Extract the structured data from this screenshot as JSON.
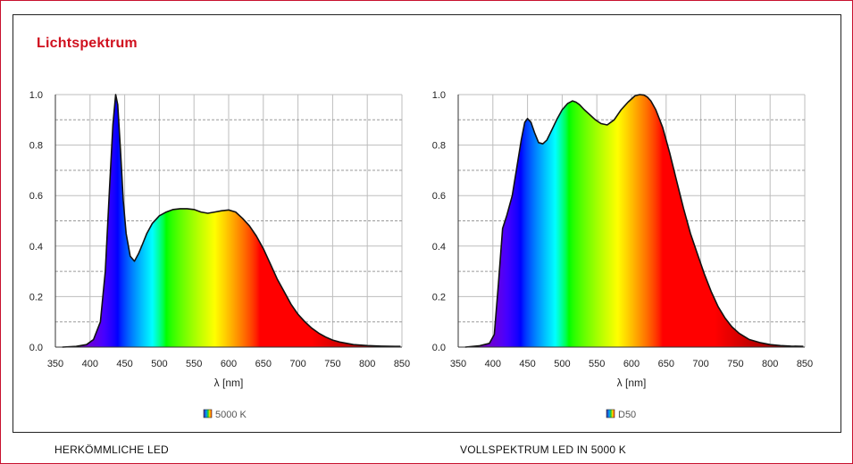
{
  "title": "Lichtspektrum",
  "captions": {
    "left": "HERKÖMMLICHE LED",
    "right": "VOLLSPEKTRUM LED IN 5000 K"
  },
  "colors": {
    "title": "#d0101e",
    "frame": "#c8102e"
  },
  "chart_data": [
    {
      "type": "area",
      "xlabel": "λ [nm]",
      "ylabel": "",
      "xlim": [
        350,
        850
      ],
      "ylim": [
        0,
        1
      ],
      "x_ticks": [
        "350",
        "400",
        "450",
        "500",
        "550",
        "600",
        "650",
        "700",
        "750",
        "800",
        "850"
      ],
      "y_ticks": [
        "0.0",
        "0.2",
        "0.4",
        "0.6",
        "0.8",
        "1.0"
      ],
      "grid": true,
      "fill": "visible-spectrum gradient",
      "legend": {
        "position": "bottom-center",
        "entries": [
          "5000 K"
        ]
      },
      "series": [
        {
          "name": "5000 K",
          "x": [
            360,
            380,
            395,
            405,
            415,
            422,
            428,
            433,
            437,
            440,
            444,
            448,
            452,
            458,
            464,
            470,
            476,
            482,
            490,
            500,
            510,
            520,
            530,
            540,
            550,
            560,
            570,
            580,
            590,
            600,
            610,
            620,
            630,
            640,
            650,
            660,
            670,
            680,
            690,
            700,
            710,
            720,
            730,
            740,
            750,
            760,
            780,
            800,
            820,
            840,
            848
          ],
          "y": [
            0.0,
            0.003,
            0.01,
            0.03,
            0.1,
            0.3,
            0.62,
            0.88,
            1.0,
            0.96,
            0.78,
            0.58,
            0.45,
            0.36,
            0.34,
            0.37,
            0.41,
            0.45,
            0.49,
            0.52,
            0.535,
            0.545,
            0.548,
            0.548,
            0.545,
            0.535,
            0.53,
            0.535,
            0.54,
            0.543,
            0.535,
            0.51,
            0.48,
            0.44,
            0.39,
            0.33,
            0.27,
            0.22,
            0.17,
            0.13,
            0.1,
            0.075,
            0.055,
            0.04,
            0.028,
            0.02,
            0.01,
            0.006,
            0.004,
            0.003,
            0.003
          ]
        }
      ]
    },
    {
      "type": "area",
      "xlabel": "λ [nm]",
      "ylabel": "",
      "xlim": [
        350,
        850
      ],
      "ylim": [
        0,
        1
      ],
      "x_ticks": [
        "350",
        "400",
        "450",
        "500",
        "550",
        "600",
        "650",
        "700",
        "750",
        "800",
        "850"
      ],
      "y_ticks": [
        "0.0",
        "0.2",
        "0.4",
        "0.6",
        "0.8",
        "1.0"
      ],
      "grid": true,
      "fill": "visible-spectrum gradient",
      "legend": {
        "position": "bottom-center",
        "entries": [
          "D50"
        ]
      },
      "series": [
        {
          "name": "D50",
          "x": [
            360,
            380,
            395,
            402,
            408,
            414,
            420,
            428,
            435,
            441,
            446,
            450,
            455,
            460,
            466,
            472,
            478,
            485,
            492,
            500,
            508,
            515,
            520,
            525,
            532,
            540,
            548,
            556,
            565,
            575,
            585,
            595,
            605,
            612,
            618,
            623,
            628,
            635,
            645,
            655,
            665,
            675,
            685,
            695,
            705,
            715,
            725,
            735,
            745,
            755,
            770,
            785,
            800,
            815,
            830,
            848
          ],
          "y": [
            0.0,
            0.005,
            0.015,
            0.05,
            0.25,
            0.47,
            0.52,
            0.6,
            0.72,
            0.82,
            0.89,
            0.905,
            0.89,
            0.85,
            0.81,
            0.805,
            0.82,
            0.86,
            0.9,
            0.94,
            0.965,
            0.975,
            0.97,
            0.96,
            0.94,
            0.92,
            0.9,
            0.885,
            0.88,
            0.9,
            0.94,
            0.97,
            0.995,
            1.0,
            0.998,
            0.99,
            0.975,
            0.94,
            0.87,
            0.77,
            0.66,
            0.55,
            0.45,
            0.37,
            0.29,
            0.22,
            0.16,
            0.115,
            0.08,
            0.055,
            0.03,
            0.018,
            0.01,
            0.006,
            0.004,
            0.003
          ]
        }
      ]
    }
  ]
}
